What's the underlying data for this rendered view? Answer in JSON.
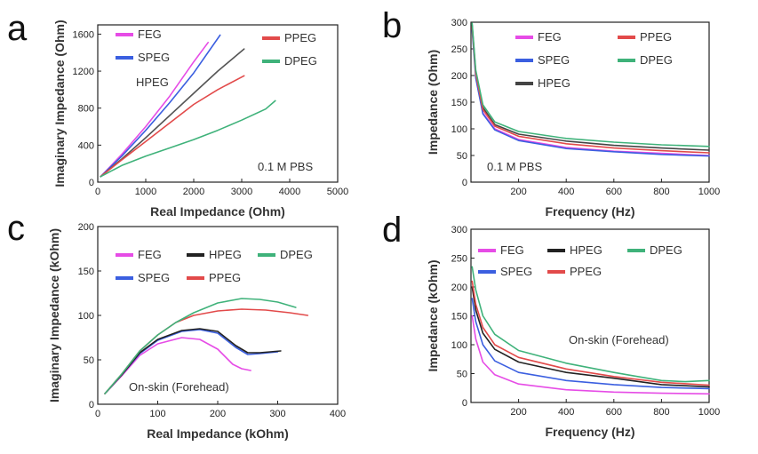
{
  "chart_data": [
    {
      "id": "a",
      "type": "line",
      "panel_label": "a",
      "xlabel": "Real Impedance (Ohm)",
      "ylabel": "Imaginary Impedance (Ohm)",
      "xlim": [
        0,
        5000
      ],
      "ylim": [
        0,
        1700
      ],
      "xticks": [
        0,
        1000,
        2000,
        3000,
        4000,
        5000
      ],
      "yticks": [
        0,
        400,
        800,
        1200,
        1600
      ],
      "annotations": [
        "0.1 M PBS"
      ],
      "legend": [
        "FEG",
        "SPEG",
        "HPEG",
        "PPEG",
        "DPEG"
      ],
      "series": [
        {
          "name": "FEG",
          "color": "#e64ce6",
          "points": [
            [
              60,
              60
            ],
            [
              500,
              300
            ],
            [
              1000,
              600
            ],
            [
              1500,
              930
            ],
            [
              2000,
              1300
            ],
            [
              2300,
              1510
            ]
          ]
        },
        {
          "name": "SPEG",
          "color": "#3b5fe0",
          "points": [
            [
              60,
              60
            ],
            [
              500,
              280
            ],
            [
              1000,
              560
            ],
            [
              1500,
              860
            ],
            [
              2000,
              1180
            ],
            [
              2550,
              1590
            ]
          ]
        },
        {
          "name": "HPEG",
          "color": "#555555",
          "points": [
            [
              60,
              60
            ],
            [
              500,
              250
            ],
            [
              1000,
              480
            ],
            [
              1500,
              720
            ],
            [
              2000,
              960
            ],
            [
              2500,
              1200
            ],
            [
              3050,
              1440
            ]
          ]
        },
        {
          "name": "PPEG",
          "color": "#e24a4a",
          "points": [
            [
              60,
              60
            ],
            [
              500,
              240
            ],
            [
              1000,
              440
            ],
            [
              1500,
              640
            ],
            [
              2000,
              840
            ],
            [
              2500,
              1000
            ],
            [
              3050,
              1150
            ]
          ]
        },
        {
          "name": "DPEG",
          "color": "#3fb27a",
          "points": [
            [
              60,
              60
            ],
            [
              500,
              180
            ],
            [
              1000,
              280
            ],
            [
              1500,
              370
            ],
            [
              2000,
              460
            ],
            [
              2500,
              560
            ],
            [
              3000,
              670
            ],
            [
              3500,
              790
            ],
            [
              3700,
              880
            ]
          ]
        }
      ]
    },
    {
      "id": "b",
      "type": "line",
      "panel_label": "b",
      "xlabel": "Frequency (Hz)",
      "ylabel": "Impedance (Ohm)",
      "xlim": [
        0,
        1000
      ],
      "ylim": [
        0,
        300
      ],
      "xticks": [
        200,
        400,
        600,
        800,
        1000
      ],
      "yticks": [
        0,
        50,
        100,
        150,
        200,
        250,
        300
      ],
      "annotations": [
        "0.1 M PBS"
      ],
      "legend": [
        "FEG",
        "PPEG",
        "SPEG",
        "DPEG",
        "HPEG"
      ],
      "series": [
        {
          "name": "FEG",
          "color": "#e64ce6",
          "points": [
            [
              5,
              290
            ],
            [
              20,
              200
            ],
            [
              50,
              130
            ],
            [
              100,
              100
            ],
            [
              200,
              80
            ],
            [
              400,
              65
            ],
            [
              600,
              58
            ],
            [
              800,
              54
            ],
            [
              1000,
              50
            ]
          ]
        },
        {
          "name": "SPEG",
          "color": "#3b5fe0",
          "points": [
            [
              5,
              285
            ],
            [
              20,
              195
            ],
            [
              50,
              128
            ],
            [
              100,
              98
            ],
            [
              200,
              78
            ],
            [
              400,
              63
            ],
            [
              600,
              57
            ],
            [
              800,
              52
            ],
            [
              1000,
              49
            ]
          ]
        },
        {
          "name": "HPEG",
          "color": "#444444",
          "points": [
            [
              5,
              295
            ],
            [
              20,
              205
            ],
            [
              50,
              140
            ],
            [
              100,
              108
            ],
            [
              200,
              90
            ],
            [
              400,
              77
            ],
            [
              600,
              69
            ],
            [
              800,
              64
            ],
            [
              1000,
              60
            ]
          ]
        },
        {
          "name": "PPEG",
          "color": "#e24a4a",
          "points": [
            [
              5,
              292
            ],
            [
              20,
              203
            ],
            [
              50,
              136
            ],
            [
              100,
              105
            ],
            [
              200,
              86
            ],
            [
              400,
              72
            ],
            [
              600,
              64
            ],
            [
              800,
              59
            ],
            [
              1000,
              55
            ]
          ]
        },
        {
          "name": "DPEG",
          "color": "#3fb27a",
          "points": [
            [
              5,
              298
            ],
            [
              20,
              210
            ],
            [
              50,
              145
            ],
            [
              100,
              113
            ],
            [
              200,
              95
            ],
            [
              400,
              82
            ],
            [
              600,
              75
            ],
            [
              800,
              70
            ],
            [
              1000,
              67
            ]
          ]
        }
      ]
    },
    {
      "id": "c",
      "type": "line",
      "panel_label": "c",
      "xlabel": "Real Impedance (kOhm)",
      "ylabel": "Imaginary Impedance (kOhm)",
      "xlim": [
        0,
        400
      ],
      "ylim": [
        0,
        200
      ],
      "xticks": [
        0,
        100,
        200,
        300,
        400
      ],
      "yticks": [
        0,
        50,
        100,
        150,
        200
      ],
      "annotations": [
        "On-skin (Forehead)"
      ],
      "legend": [
        "FEG",
        "HPEG",
        "DPEG",
        "SPEG",
        "PPEG"
      ],
      "series": [
        {
          "name": "FEG",
          "color": "#e64ce6",
          "points": [
            [
              12,
              12
            ],
            [
              40,
              32
            ],
            [
              70,
              55
            ],
            [
              100,
              68
            ],
            [
              140,
              75
            ],
            [
              170,
              73
            ],
            [
              200,
              62
            ],
            [
              225,
              45
            ],
            [
              240,
              40
            ],
            [
              255,
              38
            ]
          ]
        },
        {
          "name": "SPEG",
          "color": "#3b5fe0",
          "points": [
            [
              12,
              12
            ],
            [
              40,
              33
            ],
            [
              70,
              57
            ],
            [
              100,
              72
            ],
            [
              140,
              82
            ],
            [
              170,
              84
            ],
            [
              200,
              80
            ],
            [
              230,
              64
            ],
            [
              250,
              56
            ],
            [
              270,
              57
            ],
            [
              300,
              59
            ]
          ]
        },
        {
          "name": "HPEG",
          "color": "#222222",
          "points": [
            [
              12,
              12
            ],
            [
              40,
              33
            ],
            [
              70,
              58
            ],
            [
              100,
              73
            ],
            [
              140,
              83
            ],
            [
              170,
              85
            ],
            [
              200,
              82
            ],
            [
              230,
              66
            ],
            [
              250,
              58
            ],
            [
              270,
              58
            ],
            [
              305,
              60
            ]
          ]
        },
        {
          "name": "PPEG",
          "color": "#e24a4a",
          "points": [
            [
              12,
              12
            ],
            [
              40,
              34
            ],
            [
              70,
              60
            ],
            [
              100,
              78
            ],
            [
              130,
              92
            ],
            [
              160,
              100
            ],
            [
              200,
              105
            ],
            [
              240,
              107
            ],
            [
              280,
              106
            ],
            [
              320,
              103
            ],
            [
              350,
              100
            ]
          ]
        },
        {
          "name": "DPEG",
          "color": "#3fb27a",
          "points": [
            [
              12,
              12
            ],
            [
              40,
              34
            ],
            [
              70,
              60
            ],
            [
              100,
              78
            ],
            [
              130,
              92
            ],
            [
              160,
              103
            ],
            [
              200,
              114
            ],
            [
              240,
              119
            ],
            [
              270,
              118
            ],
            [
              300,
              115
            ],
            [
              330,
              109
            ]
          ]
        }
      ]
    },
    {
      "id": "d",
      "type": "line",
      "panel_label": "d",
      "xlabel": "Frequency (Hz)",
      "ylabel": "Impedance (kOhm)",
      "xlim": [
        0,
        1000
      ],
      "ylim": [
        0,
        300
      ],
      "xticks": [
        200,
        400,
        600,
        800,
        1000
      ],
      "yticks": [
        0,
        50,
        100,
        150,
        200,
        250,
        300
      ],
      "annotations": [
        "On-skin (Forehead)"
      ],
      "legend": [
        "FEG",
        "HPEG",
        "DPEG",
        "SPEG",
        "PPEG"
      ],
      "series": [
        {
          "name": "FEG",
          "color": "#e64ce6",
          "points": [
            [
              5,
              150
            ],
            [
              20,
              110
            ],
            [
              50,
              70
            ],
            [
              100,
              48
            ],
            [
              200,
              32
            ],
            [
              400,
              22
            ],
            [
              600,
              18
            ],
            [
              800,
              16
            ],
            [
              1000,
              15
            ]
          ]
        },
        {
          "name": "SPEG",
          "color": "#3b5fe0",
          "points": [
            [
              5,
              180
            ],
            [
              20,
              140
            ],
            [
              50,
              100
            ],
            [
              100,
              72
            ],
            [
              200,
              52
            ],
            [
              400,
              38
            ],
            [
              600,
              31
            ],
            [
              800,
              26
            ],
            [
              1000,
              24
            ]
          ]
        },
        {
          "name": "HPEG",
          "color": "#222222",
          "points": [
            [
              5,
              200
            ],
            [
              20,
              160
            ],
            [
              50,
              120
            ],
            [
              100,
              92
            ],
            [
              200,
              70
            ],
            [
              400,
              52
            ],
            [
              600,
              42
            ],
            [
              800,
              31
            ],
            [
              1000,
              27
            ]
          ]
        },
        {
          "name": "PPEG",
          "color": "#e24a4a",
          "points": [
            [
              5,
              210
            ],
            [
              20,
              170
            ],
            [
              50,
              130
            ],
            [
              100,
              100
            ],
            [
              200,
              78
            ],
            [
              400,
              58
            ],
            [
              600,
              45
            ],
            [
              800,
              35
            ],
            [
              1000,
              30
            ]
          ]
        },
        {
          "name": "DPEG",
          "color": "#3fb27a",
          "points": [
            [
              5,
              235
            ],
            [
              20,
              195
            ],
            [
              50,
              150
            ],
            [
              100,
              118
            ],
            [
              200,
              90
            ],
            [
              400,
              68
            ],
            [
              600,
              52
            ],
            [
              700,
              45
            ],
            [
              800,
              38
            ],
            [
              900,
              36
            ],
            [
              1000,
              38
            ]
          ]
        }
      ]
    }
  ]
}
